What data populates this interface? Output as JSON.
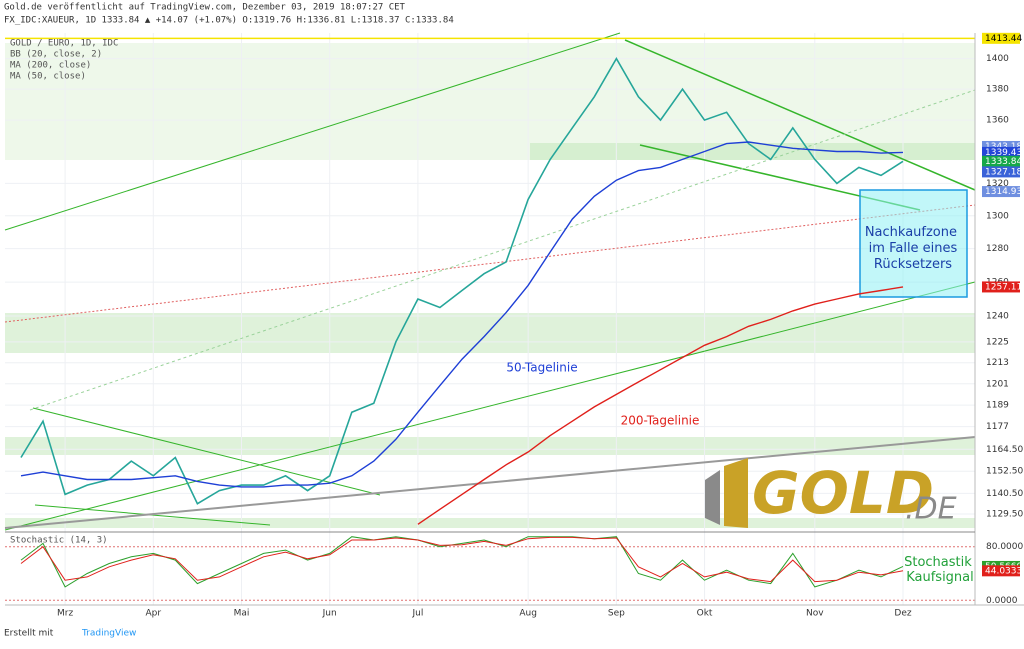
{
  "header": {
    "line1": "Gold.de veröffentlicht auf TradingView.com, Dezember 03, 2019 18:07:27 CET",
    "line2": "FX_IDC:XAUEUR, 1D 1333.84 ▲ +14.07 (+1.07%) O:1319.76 H:1336.81 L:1318.37 C:1333.84"
  },
  "legend": [
    "GOLD / EURO, 1D, IDC",
    "BB (20, close, 2)",
    "MA (200, close)",
    "MA (50, close)"
  ],
  "annotations": {
    "zone": "Nachkaufzone im Falle eines Rücksetzers",
    "ma50": "50-Tagelinie",
    "ma200": "200-Tagelinie",
    "stoch": "Stochastik Kaufsignal",
    "logo_main": "GOLD",
    "logo_tld": ".DE"
  },
  "footer": {
    "prefix": "Erstellt mit",
    "brand": "TradingView"
  },
  "chart_data": {
    "type": "line",
    "log_scale": true,
    "grid": true,
    "categories": [
      null,
      null,
      "Mrz",
      null,
      null,
      null,
      "Apr",
      null,
      null,
      null,
      "Mai",
      null,
      null,
      null,
      "Jun",
      null,
      null,
      null,
      "Jul",
      null,
      null,
      null,
      null,
      "Aug",
      null,
      null,
      null,
      "Sep",
      null,
      null,
      null,
      "Okt",
      null,
      null,
      null,
      null,
      "Nov",
      null,
      null,
      null,
      "Dez"
    ],
    "ylim": [
      1121,
      1417
    ],
    "yticks": [
      1400,
      1380,
      1360,
      1320,
      1300,
      1280,
      1260,
      1240,
      1225,
      1213,
      1201,
      1189,
      1177,
      {
        "value": 1164.5,
        "label": "1164.50"
      },
      {
        "value": 1152.5,
        "label": "1152.50"
      },
      {
        "value": 1140.5,
        "label": "1140.50"
      },
      {
        "value": 1129.5,
        "label": "1129.50"
      }
    ],
    "series": [
      {
        "name": "GOLD / EURO",
        "color": "#26a69a",
        "values": [
          1160,
          1180,
          1140,
          1145,
          1148,
          1158,
          1150,
          1160,
          1135,
          1142,
          1145,
          1145,
          1150,
          1142,
          1150,
          1185,
          1190,
          1225,
          1250,
          1245,
          1255,
          1265,
          1272,
          1310,
          1335,
          1355,
          1375,
          1400,
          1375,
          1360,
          1380,
          1360,
          1365,
          1345,
          1335,
          1355,
          1335,
          1320,
          1330,
          1325,
          1333.84
        ]
      },
      {
        "name": "MA (50, close)",
        "color": "#1e3fd6",
        "values": [
          1150,
          1152,
          1150,
          1148,
          1148,
          1148,
          1149,
          1150,
          1147,
          1145,
          1144,
          1144,
          1145,
          1145,
          1146,
          1150,
          1158,
          1170,
          1185,
          1200,
          1215,
          1228,
          1242,
          1258,
          1278,
          1298,
          1312,
          1322,
          1328,
          1330,
          1335,
          1340,
          1345,
          1346,
          1344,
          1342,
          1341,
          1340,
          1340,
          1339,
          1339.43
        ]
      },
      {
        "name": "MA (200, close)",
        "color": "#e0201b",
        "values": [
          null,
          null,
          null,
          null,
          null,
          null,
          null,
          null,
          null,
          null,
          null,
          null,
          null,
          null,
          null,
          null,
          null,
          null,
          1124,
          1132,
          1140,
          1148,
          1156,
          1163,
          1172,
          1180,
          1188,
          1195,
          1202,
          1209,
          1216,
          1223,
          1228,
          1234,
          1238,
          1243,
          1247,
          1250,
          1253,
          1255,
          1257.11
        ]
      }
    ],
    "price_labels": [
      {
        "value": 1413.44,
        "color": "#f5e400",
        "text_color": "#000"
      },
      {
        "value": 1343.18,
        "color": "#6f8fe0",
        "text_color": "#fff"
      },
      {
        "value": 1339.43,
        "color": "#2446d8",
        "text_color": "#fff"
      },
      {
        "value": 1333.84,
        "color": "#16a84a",
        "text_color": "#fff"
      },
      {
        "value": 1327.18,
        "color": "#3a62d8",
        "text_color": "#fff"
      },
      {
        "value": 1314.93,
        "color": "#6f8fe0",
        "text_color": "#fff"
      },
      {
        "value": 1257.11,
        "color": "#e0201b",
        "text_color": "#fff"
      }
    ],
    "stochastic": {
      "title": "Stochastic (14, 3)",
      "ylim": [
        -7,
        102
      ],
      "yticks": [
        {
          "value": 80,
          "label": "80.0000"
        },
        {
          "value": 0,
          "label": "0.0000"
        }
      ],
      "series": [
        {
          "name": "%K",
          "color": "#2ca02c",
          "values": [
            60,
            85,
            20,
            40,
            55,
            65,
            70,
            60,
            25,
            40,
            55,
            70,
            75,
            60,
            70,
            95,
            90,
            95,
            90,
            80,
            85,
            90,
            80,
            95,
            95,
            95,
            92,
            95,
            40,
            30,
            60,
            30,
            45,
            30,
            25,
            70,
            20,
            30,
            45,
            35,
            50.566
          ],
          "last_label": "50.5660"
        },
        {
          "name": "%D",
          "color": "#e0201b",
          "values": [
            55,
            80,
            30,
            35,
            50,
            60,
            68,
            62,
            30,
            35,
            50,
            65,
            72,
            62,
            68,
            90,
            90,
            93,
            90,
            82,
            83,
            88,
            82,
            92,
            94,
            94,
            92,
            93,
            50,
            35,
            55,
            35,
            42,
            32,
            28,
            60,
            28,
            30,
            42,
            38,
            44.0333
          ],
          "last_label": "44.0333"
        }
      ]
    }
  }
}
